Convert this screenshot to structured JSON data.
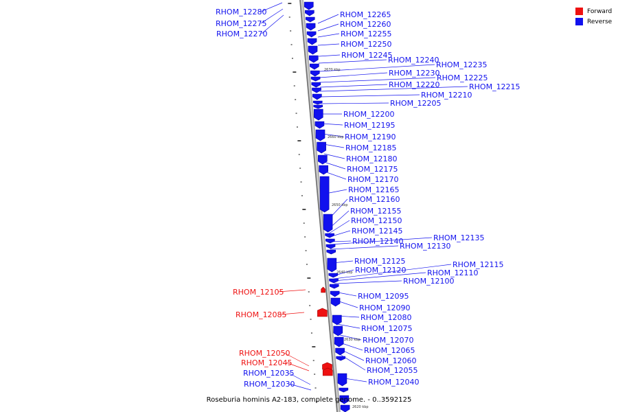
{
  "caption": "Roseburia hominis A2-183, complete genome. - 0..3592125",
  "legend": [
    {
      "label": "Forward",
      "color": "#ee1111"
    },
    {
      "label": "Reverse",
      "color": "#1111ee"
    }
  ],
  "colors": {
    "forward": "#ee1111",
    "reverse": "#1111ee",
    "backbone": "#8a8a8a"
  },
  "tick_labels": [
    "2670 kbp",
    "2660 kbp",
    "2650 kbp",
    "2640 kbp",
    "2630 kbp",
    "2620 kbp"
  ],
  "genes": [
    {
      "name": "RHOM_12280",
      "strand": "reverse"
    },
    {
      "name": "RHOM_12275",
      "strand": "reverse"
    },
    {
      "name": "RHOM_12270",
      "strand": "reverse"
    },
    {
      "name": "RHOM_12265",
      "strand": "reverse"
    },
    {
      "name": "RHOM_12260",
      "strand": "reverse"
    },
    {
      "name": "RHOM_12255",
      "strand": "reverse"
    },
    {
      "name": "RHOM_12250",
      "strand": "reverse"
    },
    {
      "name": "RHOM_12245",
      "strand": "reverse"
    },
    {
      "name": "RHOM_12240",
      "strand": "reverse"
    },
    {
      "name": "RHOM_12235",
      "strand": "reverse"
    },
    {
      "name": "RHOM_12230",
      "strand": "reverse"
    },
    {
      "name": "RHOM_12225",
      "strand": "reverse"
    },
    {
      "name": "RHOM_12220",
      "strand": "reverse"
    },
    {
      "name": "RHOM_12215",
      "strand": "reverse"
    },
    {
      "name": "RHOM_12210",
      "strand": "reverse"
    },
    {
      "name": "RHOM_12205",
      "strand": "reverse"
    },
    {
      "name": "RHOM_12200",
      "strand": "reverse"
    },
    {
      "name": "RHOM_12195",
      "strand": "reverse"
    },
    {
      "name": "RHOM_12190",
      "strand": "reverse"
    },
    {
      "name": "RHOM_12185",
      "strand": "reverse"
    },
    {
      "name": "RHOM_12180",
      "strand": "reverse"
    },
    {
      "name": "RHOM_12175",
      "strand": "reverse"
    },
    {
      "name": "RHOM_12170",
      "strand": "reverse"
    },
    {
      "name": "RHOM_12165",
      "strand": "reverse"
    },
    {
      "name": "RHOM_12160",
      "strand": "reverse"
    },
    {
      "name": "RHOM_12155",
      "strand": "reverse"
    },
    {
      "name": "RHOM_12150",
      "strand": "reverse"
    },
    {
      "name": "RHOM_12145",
      "strand": "reverse"
    },
    {
      "name": "RHOM_12140",
      "strand": "reverse"
    },
    {
      "name": "RHOM_12135",
      "strand": "reverse"
    },
    {
      "name": "RHOM_12130",
      "strand": "reverse"
    },
    {
      "name": "RHOM_12125",
      "strand": "reverse"
    },
    {
      "name": "RHOM_12120",
      "strand": "reverse"
    },
    {
      "name": "RHOM_12115",
      "strand": "reverse"
    },
    {
      "name": "RHOM_12110",
      "strand": "reverse"
    },
    {
      "name": "RHOM_12105",
      "strand": "forward"
    },
    {
      "name": "RHOM_12100",
      "strand": "reverse"
    },
    {
      "name": "RHOM_12095",
      "strand": "reverse"
    },
    {
      "name": "RHOM_12090",
      "strand": "reverse"
    },
    {
      "name": "RHOM_12085",
      "strand": "forward"
    },
    {
      "name": "RHOM_12080",
      "strand": "reverse"
    },
    {
      "name": "RHOM_12075",
      "strand": "reverse"
    },
    {
      "name": "RHOM_12070",
      "strand": "reverse"
    },
    {
      "name": "RHOM_12065",
      "strand": "reverse"
    },
    {
      "name": "RHOM_12060",
      "strand": "reverse"
    },
    {
      "name": "RHOM_12055",
      "strand": "reverse"
    },
    {
      "name": "RHOM_12050",
      "strand": "forward"
    },
    {
      "name": "RHOM_12045",
      "strand": "forward"
    },
    {
      "name": "RHOM_12040",
      "strand": "reverse"
    },
    {
      "name": "RHOM_12035",
      "strand": "reverse"
    },
    {
      "name": "RHOM_12030",
      "strand": "reverse"
    }
  ]
}
